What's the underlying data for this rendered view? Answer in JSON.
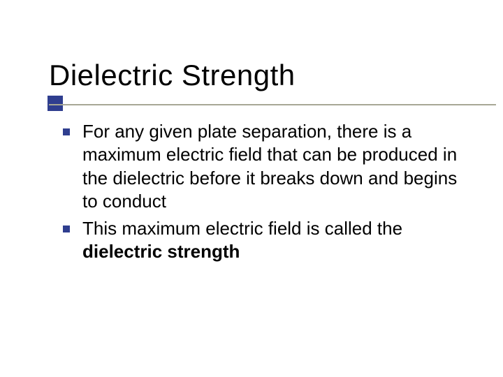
{
  "colors": {
    "accent": "#2f3e8f",
    "underline": "#a7a795",
    "text": "#000000",
    "background": "#ffffff"
  },
  "title": "Dielectric Strength",
  "bullets": [
    {
      "text": "For any given plate separation, there is a maximum electric field that can be produced in the dielectric before it breaks down and begins to conduct",
      "bold_phrase": ""
    },
    {
      "text": "This maximum electric field is called the ",
      "bold_phrase": "dielectric strength"
    }
  ]
}
